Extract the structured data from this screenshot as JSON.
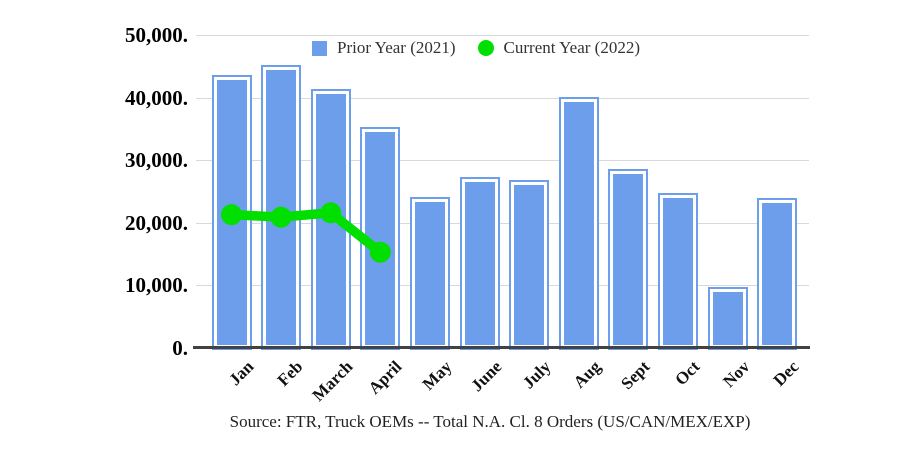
{
  "chart_data": {
    "type": "bar",
    "categories": [
      "Jan",
      "Feb",
      "March",
      "April",
      "May",
      "June",
      "July",
      "Aug",
      "Sept",
      "Oct",
      "Nov",
      "Dec"
    ],
    "series": [
      {
        "name": "Prior Year (2021)",
        "type": "bar",
        "color": "#6d9eeb",
        "values": [
          43300,
          44900,
          41000,
          35000,
          23800,
          27000,
          26500,
          39700,
          28200,
          24400,
          9500,
          23600
        ]
      },
      {
        "name": "Current Year (2022)",
        "type": "line",
        "color": "#00df00",
        "values": [
          21300,
          20900,
          21600,
          15300,
          null,
          null,
          null,
          null,
          null,
          null,
          null,
          null
        ]
      }
    ],
    "ylim": [
      0,
      50000
    ],
    "yticks": [
      0,
      10000,
      20000,
      30000,
      40000,
      50000
    ],
    "ytick_labels": [
      "0.",
      "10,000.",
      "20,000.",
      "30,000.",
      "40,000.",
      "50,000."
    ],
    "grid": true,
    "grid_color": "#d9d9d9",
    "axis_color": "#424242",
    "legend_position": "top",
    "source_note": "Source: FTR, Truck OEMs -- Total N.A. Cl. 8 Orders (US/CAN/MEX/EXP)"
  }
}
